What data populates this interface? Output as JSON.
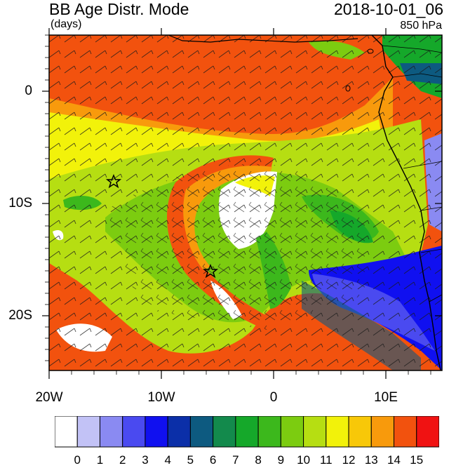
{
  "header": {
    "title": "BB Age Distr. Mode",
    "units": "(days)",
    "datetime": "2018-10-01_06",
    "level": "850 hPa"
  },
  "axes": {
    "lat_labels": [
      "0",
      "10S",
      "20S"
    ],
    "lon_labels": [
      "20W",
      "10W",
      "0",
      "10E"
    ]
  },
  "colorbar": {
    "labels": [
      "0",
      "1",
      "2",
      "3",
      "4",
      "5",
      "6",
      "7",
      "8",
      "9",
      "10",
      "11",
      "12",
      "13",
      "14",
      "15"
    ],
    "colors": [
      "#ffffff",
      "#c2c2f6",
      "#8a8af2",
      "#4a4af0",
      "#1010f0",
      "#0b2fa8",
      "#0d5a80",
      "#138a4c",
      "#15a82a",
      "#3cb81c",
      "#7ccc10",
      "#b6de12",
      "#f2f20a",
      "#f8c808",
      "#f89a0c",
      "#f2520e",
      "#f01212"
    ]
  },
  "markers": [
    {
      "name": "star-marker-1",
      "label": "star"
    },
    {
      "name": "star-marker-2",
      "label": "star"
    }
  ]
}
